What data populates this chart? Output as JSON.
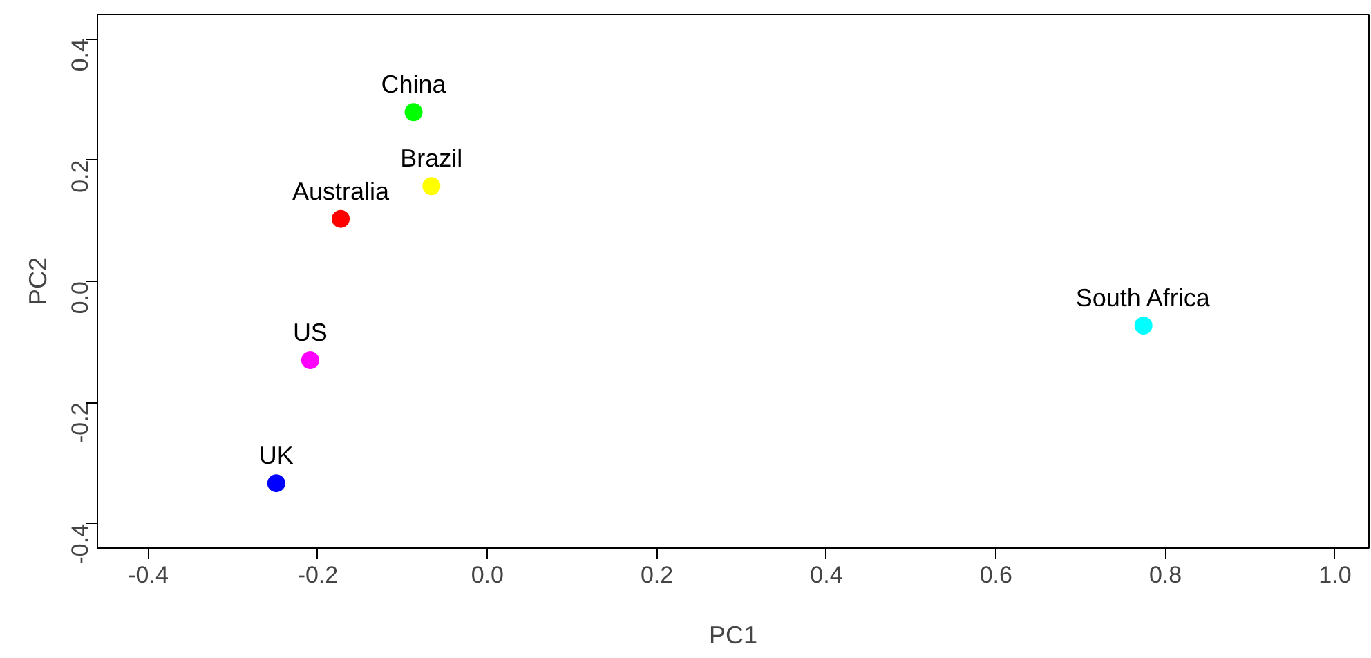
{
  "chart_data": {
    "type": "scatter",
    "xlabel": "PC1",
    "ylabel": "PC2",
    "xlim": [
      -0.46,
      1.04
    ],
    "ylim": [
      -0.44,
      0.44
    ],
    "xticks": [
      {
        "value": -0.4,
        "label": "-0.4"
      },
      {
        "value": -0.2,
        "label": "-0.2"
      },
      {
        "value": 0,
        "label": "0.0"
      },
      {
        "value": 0.2,
        "label": "0.2"
      },
      {
        "value": 0.4,
        "label": "0.4"
      },
      {
        "value": 0.6,
        "label": "0.6"
      },
      {
        "value": 0.8,
        "label": "0.8"
      },
      {
        "value": 1.0,
        "label": "1.0"
      }
    ],
    "yticks": [
      {
        "value": -0.4,
        "label": "-0.4"
      },
      {
        "value": -0.2,
        "label": "-0.2"
      },
      {
        "value": 0,
        "label": "0.0"
      },
      {
        "value": 0.2,
        "label": "0.2"
      },
      {
        "value": 0.4,
        "label": "0.4"
      }
    ],
    "grid": false,
    "marker": "circle",
    "series": [
      {
        "name": "Australia",
        "color": "#ff0000",
        "x": [
          -0.173
        ],
        "values": [
          0.103
        ]
      },
      {
        "name": "Brazil",
        "color": "#ffff00",
        "x": [
          -0.066
        ],
        "values": [
          0.157
        ]
      },
      {
        "name": "China",
        "color": "#00ff00",
        "x": [
          -0.087
        ],
        "values": [
          0.279
        ]
      },
      {
        "name": "South Africa",
        "color": "#00ffff",
        "x": [
          0.774
        ],
        "values": [
          -0.073
        ]
      },
      {
        "name": "UK",
        "color": "#0000ff",
        "x": [
          -0.249
        ],
        "values": [
          -0.333
        ]
      },
      {
        "name": "US",
        "color": "#ff00ff",
        "x": [
          -0.209
        ],
        "values": [
          -0.13
        ]
      }
    ]
  }
}
